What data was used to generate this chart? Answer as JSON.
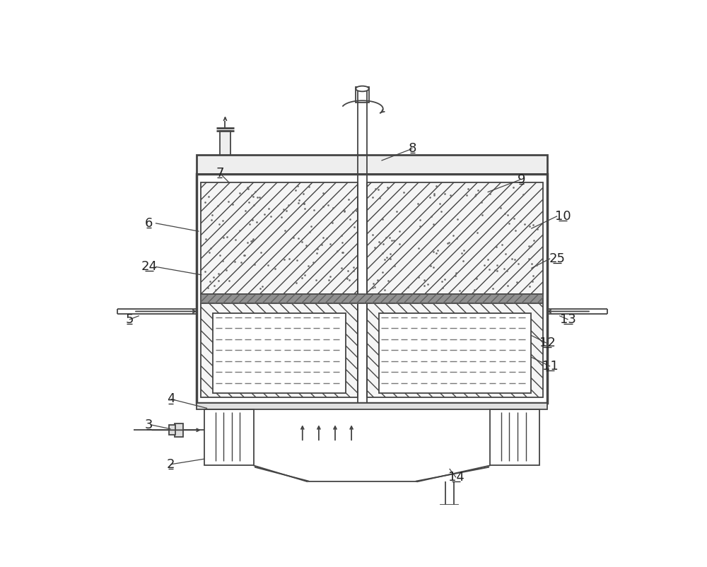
{
  "bg_color": "#ffffff",
  "lc": "#444444",
  "figsize": [
    10.0,
    8.02
  ],
  "dpi": 100,
  "labels": [
    [
      "2",
      148,
      728
    ],
    [
      "3",
      108,
      655
    ],
    [
      "4",
      148,
      608
    ],
    [
      "5",
      72,
      462
    ],
    [
      "6",
      108,
      285
    ],
    [
      "7",
      238,
      193
    ],
    [
      "8",
      592,
      148
    ],
    [
      "9",
      792,
      205
    ],
    [
      "10",
      868,
      272
    ],
    [
      "11",
      845,
      548
    ],
    [
      "12",
      840,
      505
    ],
    [
      "13",
      878,
      462
    ],
    [
      "14",
      672,
      752
    ],
    [
      "24",
      108,
      365
    ],
    [
      "25",
      858,
      350
    ]
  ]
}
